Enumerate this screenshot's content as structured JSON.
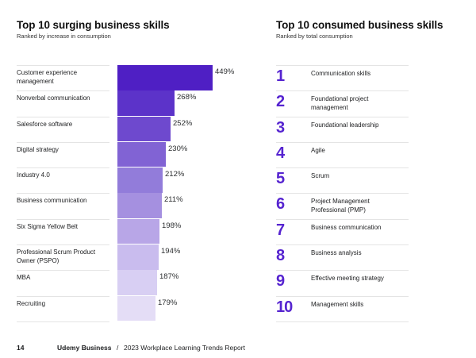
{
  "left": {
    "title": "Top 10 surging business skills",
    "subtitle": "Ranked by increase in consumption"
  },
  "right": {
    "title": "Top 10 consumed business skills",
    "subtitle": "Ranked by total consumption",
    "items": [
      {
        "rank": "1",
        "name": "Communication skills"
      },
      {
        "rank": "2",
        "name": "Foundational project management"
      },
      {
        "rank": "3",
        "name": "Foundational leadership"
      },
      {
        "rank": "4",
        "name": "Agile"
      },
      {
        "rank": "5",
        "name": "Scrum"
      },
      {
        "rank": "6",
        "name": "Project Management Professional (PMP)"
      },
      {
        "rank": "7",
        "name": "Business communication"
      },
      {
        "rank": "8",
        "name": "Business analysis"
      },
      {
        "rank": "9",
        "name": "Effective meeting strategy"
      },
      {
        "rank": "10",
        "name": "Management skills"
      }
    ]
  },
  "footer": {
    "page_number": "14",
    "brand": "Udemy Business",
    "separator": "/",
    "report": "2023 Workplace Learning Trends Report"
  },
  "colors": {
    "accent": "#5624d0",
    "bar_gradient": [
      "#4f1fc4",
      "#5c33c9",
      "#6e49ce",
      "#8163d4",
      "#927cda",
      "#a590e0",
      "#b8a6e7",
      "#c9bcee",
      "#d8cff3",
      "#e4ddf6"
    ]
  },
  "chart_data": {
    "type": "bar",
    "orientation": "horizontal",
    "title": "Top 10 surging business skills",
    "subtitle": "Ranked by increase in consumption",
    "xlabel": "",
    "ylabel": "",
    "unit": "%",
    "grid": false,
    "legend": null,
    "categories": [
      "Customer experience management",
      "Nonverbal communication",
      "Salesforce software",
      "Digital strategy",
      "Industry 4.0",
      "Business communication",
      "Six Sigma Yellow Belt",
      "Professional Scrum Product Owner (PSPO)",
      "MBA",
      "Recruiting"
    ],
    "values": [
      449,
      268,
      252,
      230,
      212,
      211,
      198,
      194,
      187,
      179
    ],
    "value_labels": [
      "449%",
      "268%",
      "252%",
      "230%",
      "212%",
      "211%",
      "198%",
      "194%",
      "187%",
      "179%"
    ],
    "xlim": [
      0,
      449
    ]
  }
}
